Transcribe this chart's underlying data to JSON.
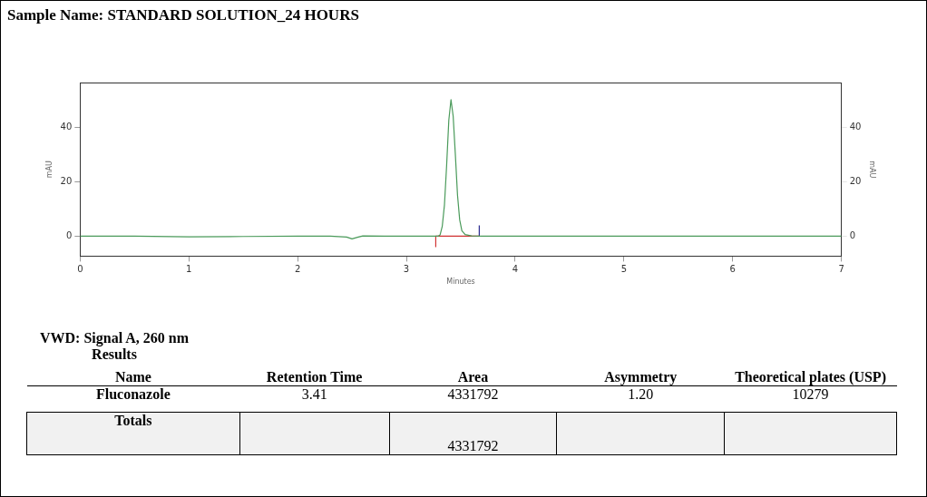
{
  "chart_data": {
    "type": "line",
    "title": "Sample Name: STANDARD SOLUTION_24 HOURS",
    "xlabel": "Minutes",
    "ylabel": "mAU",
    "y2label": "mAU",
    "xlim": [
      0,
      7
    ],
    "xticks": [
      0,
      1,
      2,
      3,
      4,
      5,
      6,
      7
    ],
    "ylim": [
      -7.3,
      56.3
    ],
    "yticks": [
      0,
      20,
      40
    ],
    "y2lim": [
      -7.3,
      56.3
    ],
    "y2ticks": [
      0,
      20,
      40
    ],
    "grid": false,
    "legend": false,
    "marker": "none",
    "line_style": "solid",
    "series": [
      {
        "color": "#4a9a5a",
        "x": [
          0,
          0.5,
          1,
          1.5,
          2,
          2.3,
          2.45,
          2.5,
          2.55,
          2.6,
          2.8,
          3.0,
          3.2,
          3.29,
          3.31,
          3.33,
          3.35,
          3.37,
          3.39,
          3.41,
          3.43,
          3.45,
          3.47,
          3.49,
          3.51,
          3.54,
          3.6,
          3.7,
          4,
          5,
          6,
          7
        ],
        "values": [
          0,
          0,
          -0.2,
          -0.1,
          0,
          0,
          -0.3,
          -1,
          -0.4,
          0.1,
          0,
          0,
          0,
          0,
          0.5,
          3.7,
          11.5,
          26,
          42.5,
          50,
          44,
          30,
          15,
          6,
          2,
          0.6,
          0.1,
          0,
          0,
          0,
          0,
          0
        ]
      },
      {
        "color": "#d03030",
        "x": [
          3.27,
          3.27,
          3.67
        ],
        "values": [
          -4,
          0,
          0
        ]
      },
      {
        "color": "#2a2a90",
        "x": [
          3.67,
          3.67
        ],
        "values": [
          0,
          4
        ]
      }
    ],
    "annotations": [
      "VWD: Signal A, 260 nm Results",
      "Name",
      "Retention Time",
      "Area",
      "Asymmetry",
      "Theoretical plates (USP)",
      "Fluconazole",
      "3.41",
      "4331792",
      "1.20",
      "10279",
      "Totals",
      "4331792"
    ]
  }
}
